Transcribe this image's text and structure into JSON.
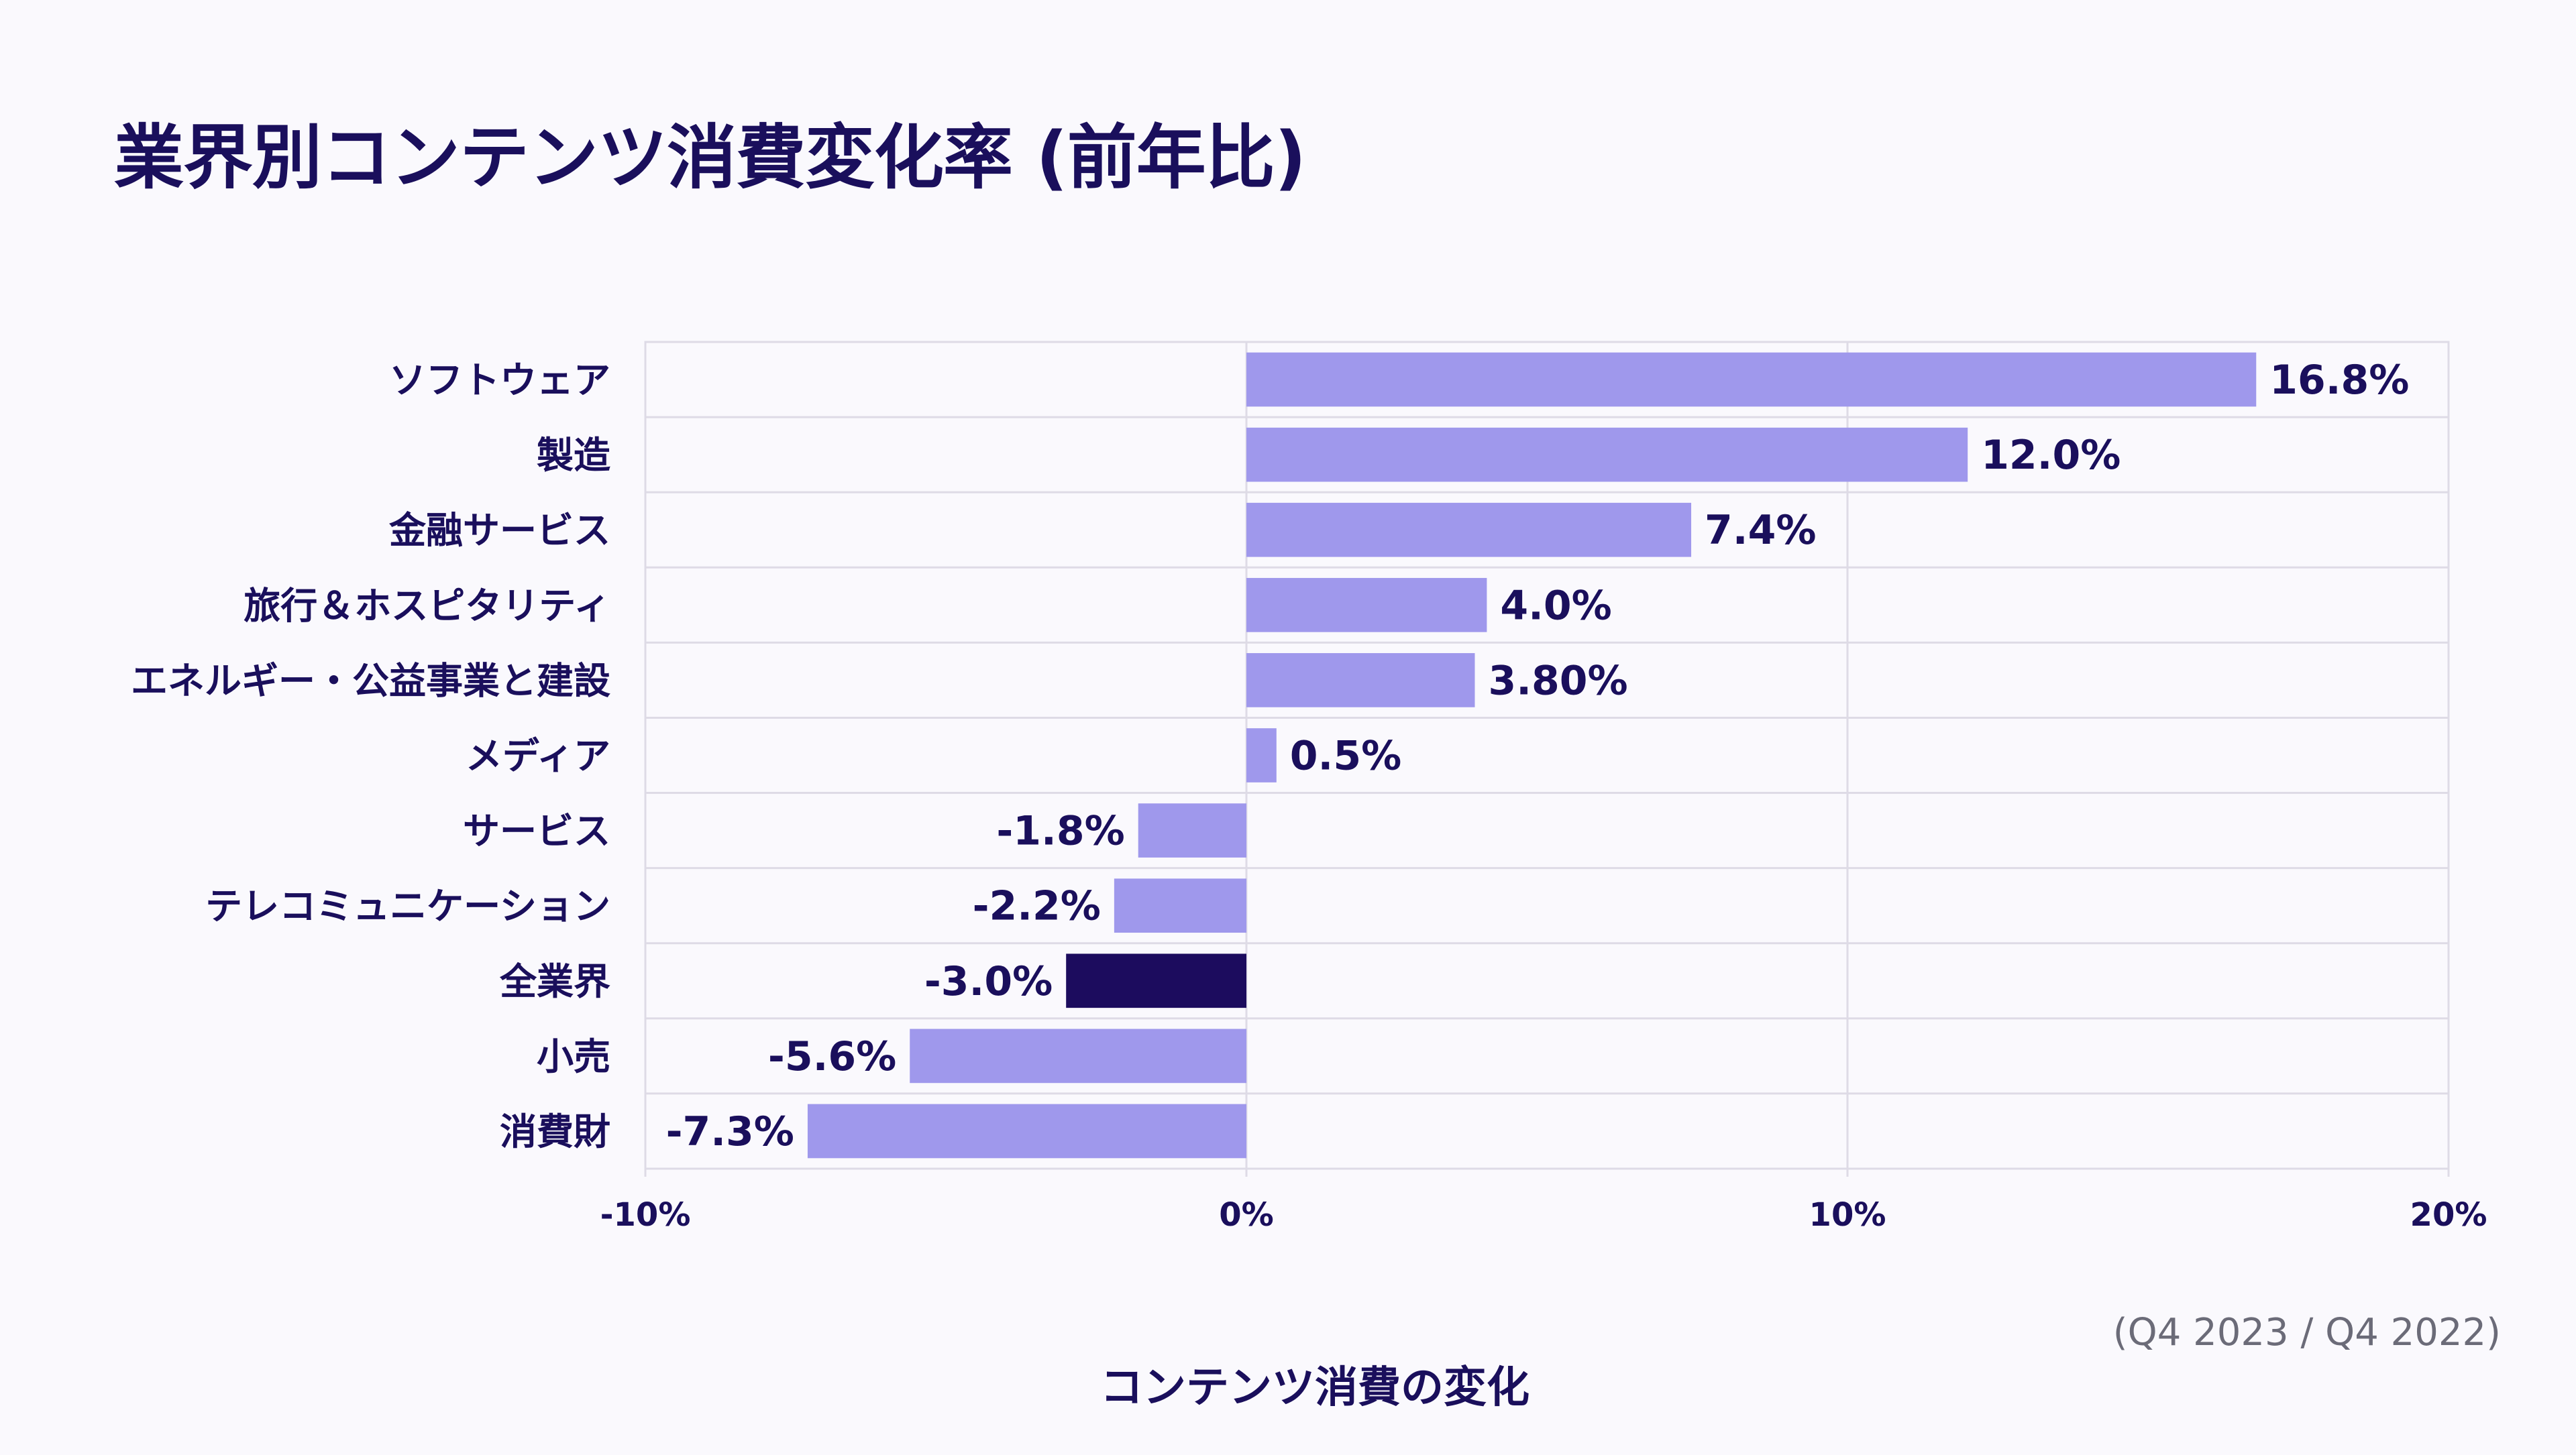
{
  "title": "業界別コンテンツ消費変化率 (前年比)",
  "note": "(Q4 2023 / Q4 2022)",
  "colors": {
    "bar": "#9f98ec",
    "highlight": "#1c0c5e",
    "text": "#1a0f5c",
    "grid": "#dedbe6",
    "background": "#faf9fd"
  },
  "chart_data": {
    "type": "bar",
    "orientation": "horizontal",
    "categories": [
      "ソフトウェア",
      "製造",
      "金融サービス",
      "旅行＆ホスピタリティ",
      "エネルギー・公益事業と建設",
      "メディア",
      "サービス",
      "テレコミュニケーション",
      "全業界",
      "小売",
      "消費財"
    ],
    "values": [
      16.8,
      12.0,
      7.4,
      4.0,
      3.8,
      0.5,
      -1.8,
      -2.2,
      -3.0,
      -5.6,
      -7.3
    ],
    "data_labels": [
      "16.8%",
      "12.0%",
      "7.4%",
      "4.0%",
      "3.80%",
      "0.5%",
      "-1.8%",
      "-2.2%",
      "-3.0%",
      "-5.6%",
      "-7.3%"
    ],
    "highlight_category": "全業界",
    "xlabel": "コンテンツ消費の変化",
    "xlim": [
      -10,
      20
    ],
    "xticks": [
      -10,
      0,
      10,
      20
    ],
    "xtick_labels": [
      "-10%",
      "0%",
      "10%",
      "20%"
    ],
    "grid": true,
    "legend": "none"
  }
}
